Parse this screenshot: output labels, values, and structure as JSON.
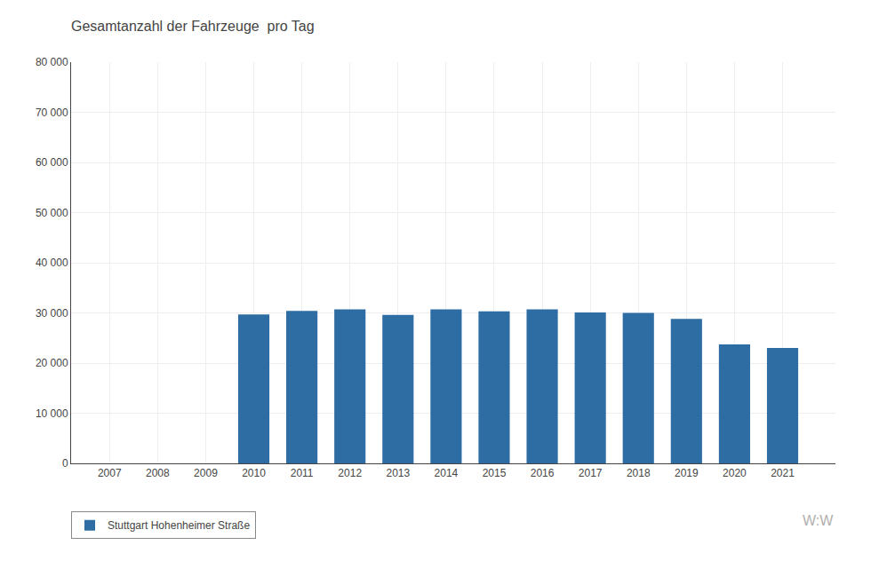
{
  "chart_data": {
    "type": "bar",
    "title": "Gesamtanzahl der Fahrzeuge  pro Tag",
    "x": [
      2007,
      2008,
      2009,
      2010,
      2011,
      2012,
      2013,
      2014,
      2015,
      2016,
      2017,
      2018,
      2019,
      2020,
      2021
    ],
    "series": [
      {
        "name": "Stuttgart Hohenheimer Straße",
        "color": "#2E6DA4",
        "values": [
          null,
          null,
          null,
          29700,
          30400,
          30700,
          29600,
          30700,
          30300,
          30700,
          30100,
          30000,
          28800,
          23700,
          23000
        ]
      }
    ],
    "xlim": [
      2006.2,
      2022.1
    ],
    "xticks": [
      2007,
      2008,
      2009,
      2010,
      2011,
      2012,
      2013,
      2014,
      2015,
      2016,
      2017,
      2018,
      2019,
      2020,
      2021
    ],
    "ylim": [
      0,
      80000
    ],
    "yticks": [
      0,
      {
        "value": 10000,
        "label": "10 000"
      },
      {
        "value": 20000,
        "label": "20 000"
      },
      {
        "value": 30000,
        "label": "30 000"
      },
      {
        "value": 40000,
        "label": "40 000"
      },
      {
        "value": 50000,
        "label": "50 000"
      },
      {
        "value": 60000,
        "label": "60 000"
      },
      {
        "value": 70000,
        "label": "70 000"
      },
      {
        "value": 80000,
        "label": "80 000"
      }
    ],
    "grid": true,
    "legend": "bottom",
    "annotations": [
      "W:W"
    ]
  }
}
